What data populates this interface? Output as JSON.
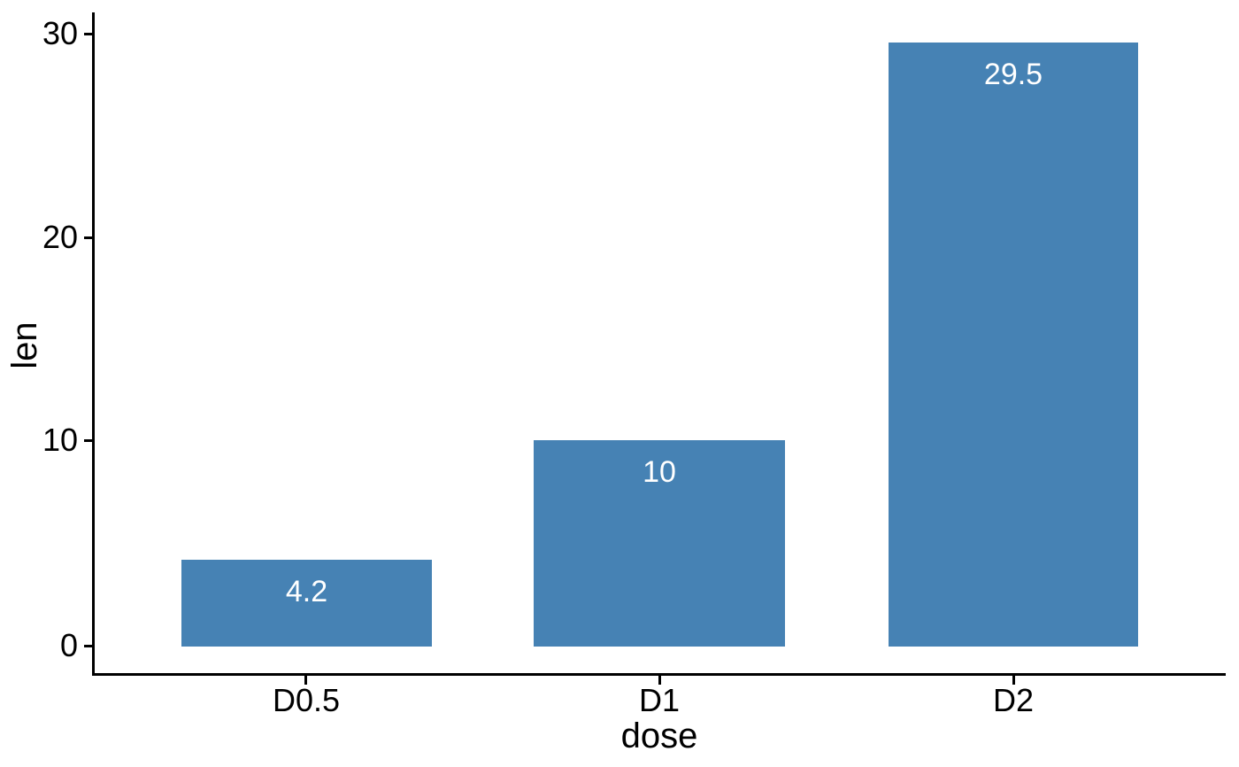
{
  "chart_data": {
    "type": "bar",
    "title": "",
    "categories": [
      "D0.5",
      "D1",
      "D2"
    ],
    "values": [
      4.2,
      10,
      29.5
    ],
    "bar_labels": [
      "4.2",
      "10",
      "29.5"
    ],
    "xlabel": "dose",
    "ylabel": "len",
    "ytick_labels": [
      "0",
      "10",
      "20",
      "30"
    ],
    "yticks": [
      0,
      10,
      20,
      30
    ],
    "ylim": [
      0,
      31
    ],
    "grid": false,
    "legend_position": "none",
    "bar_color": "#4682B4",
    "bar_label_color": "#FFFFFF",
    "axis_color": "#000000",
    "text_color": "#000000",
    "background_color": "#FFFFFF"
  }
}
